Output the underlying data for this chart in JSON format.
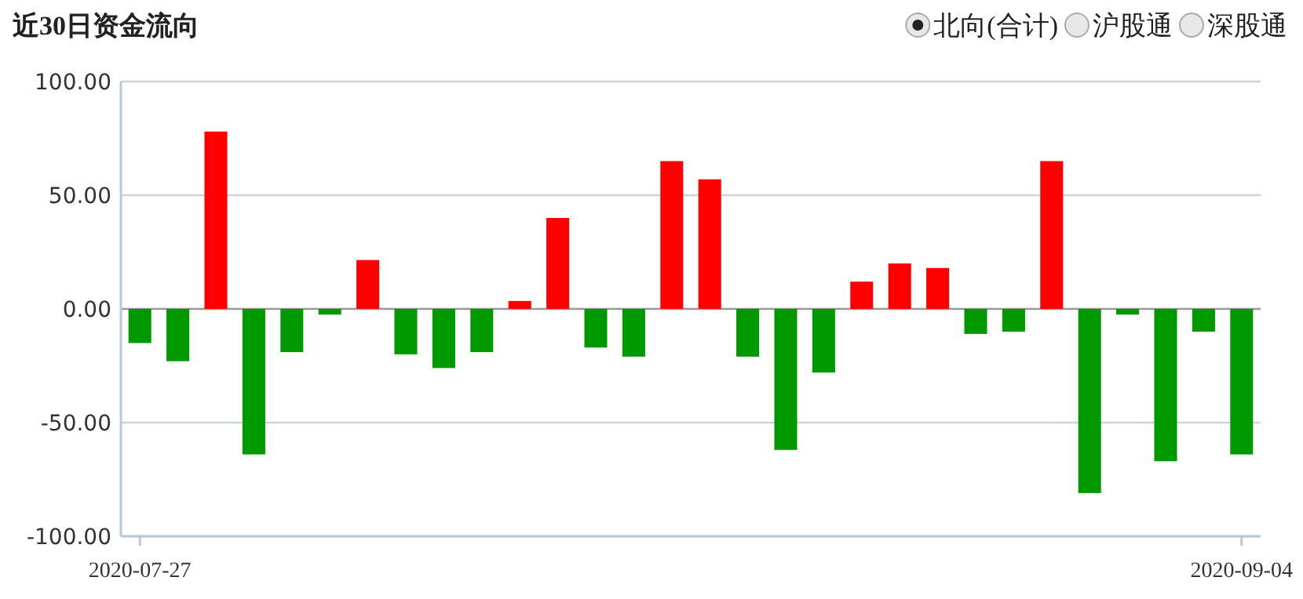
{
  "chart_data": {
    "type": "bar",
    "title": "近30日资金流向",
    "annotations": [
      "北向(合计)",
      "沪股通",
      "深股通"
    ],
    "categories": [
      "2020-07-27",
      null,
      null,
      null,
      null,
      null,
      null,
      null,
      null,
      null,
      null,
      null,
      null,
      null,
      null,
      null,
      null,
      null,
      null,
      null,
      null,
      null,
      null,
      null,
      null,
      null,
      null,
      null,
      null,
      "2020-09-04"
    ],
    "values": [
      -15,
      -23,
      78,
      -64,
      -19,
      -2.5,
      21.5,
      -20,
      -26,
      -19,
      3.5,
      40,
      -17,
      -21,
      65,
      57,
      -21,
      -62,
      -28,
      12,
      20,
      18,
      -11,
      -10,
      65,
      -81,
      -2.5,
      -67,
      -10,
      -64
    ],
    "colors": [
      "#009900",
      "#009900",
      "#ff0000",
      "#009900",
      "#009900",
      "#009900",
      "#ff0000",
      "#009900",
      "#009900",
      "#009900",
      "#ff0000",
      "#ff0000",
      "#009900",
      "#009900",
      "#ff0000",
      "#ff0000",
      "#009900",
      "#009900",
      "#009900",
      "#ff0000",
      "#ff0000",
      "#ff0000",
      "#009900",
      "#009900",
      "#ff0000",
      "#009900",
      "#009900",
      "#009900",
      "#009900",
      "#009900"
    ],
    "ylim": [
      -100,
      100
    ],
    "yticks": [
      {
        "value": -100,
        "label": "-100.00"
      },
      {
        "value": -50,
        "label": "-50.00"
      },
      {
        "value": 0,
        "label": "0.00"
      },
      {
        "value": 50,
        "label": "50.00"
      },
      {
        "value": 100,
        "label": "100.00"
      }
    ],
    "grid": "y"
  }
}
